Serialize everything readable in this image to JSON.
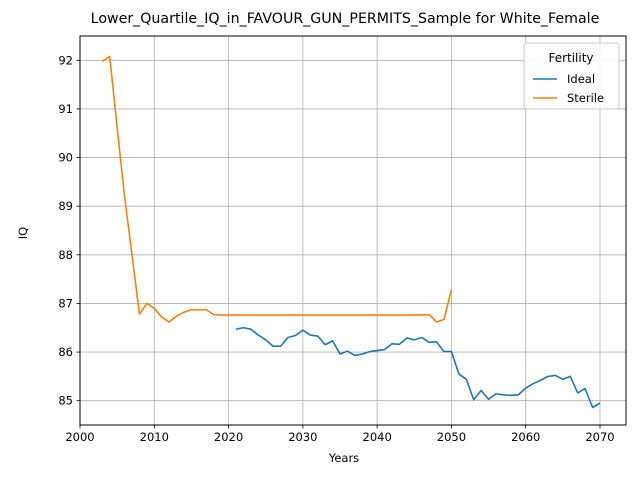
{
  "chart_data": {
    "type": "line",
    "title": "Lower_Quartile_IQ_in_FAVOUR_GUN_PERMITS_Sample for White_Female",
    "xlabel": "Years",
    "ylabel": "IQ",
    "xlim": [
      2000,
      2073.5
    ],
    "ylim": [
      84.5,
      92.5
    ],
    "xticks": [
      2000,
      2010,
      2020,
      2030,
      2040,
      2050,
      2060,
      2070
    ],
    "yticks": [
      85,
      86,
      87,
      88,
      89,
      90,
      91,
      92
    ],
    "grid": true,
    "legend": {
      "title": "Fertility",
      "position": "top-right"
    },
    "series": [
      {
        "name": "Ideal",
        "color": "#1f77b4",
        "points": [
          [
            2021,
            86.47
          ],
          [
            2022,
            86.5
          ],
          [
            2023,
            86.47
          ],
          [
            2024,
            86.35
          ],
          [
            2025,
            86.25
          ],
          [
            2026,
            86.12
          ],
          [
            2027,
            86.12
          ],
          [
            2028,
            86.3
          ],
          [
            2029,
            86.34
          ],
          [
            2030,
            86.45
          ],
          [
            2031,
            86.35
          ],
          [
            2032,
            86.33
          ],
          [
            2033,
            86.15
          ],
          [
            2034,
            86.23
          ],
          [
            2035,
            85.96
          ],
          [
            2036,
            86.02
          ],
          [
            2037,
            85.93
          ],
          [
            2038,
            85.96
          ],
          [
            2039,
            86.01
          ],
          [
            2040,
            86.03
          ],
          [
            2041,
            86.05
          ],
          [
            2042,
            86.17
          ],
          [
            2043,
            86.16
          ],
          [
            2044,
            86.29
          ],
          [
            2045,
            86.25
          ],
          [
            2046,
            86.3
          ],
          [
            2047,
            86.2
          ],
          [
            2048,
            86.21
          ],
          [
            2049,
            86.01
          ],
          [
            2050,
            86.01
          ],
          [
            2051,
            85.55
          ],
          [
            2052,
            85.44
          ],
          [
            2053,
            85.02
          ],
          [
            2054,
            85.21
          ],
          [
            2055,
            85.03
          ],
          [
            2056,
            85.14
          ],
          [
            2057,
            85.12
          ],
          [
            2058,
            85.11
          ],
          [
            2059,
            85.12
          ],
          [
            2060,
            85.26
          ],
          [
            2061,
            85.35
          ],
          [
            2062,
            85.42
          ],
          [
            2063,
            85.5
          ],
          [
            2064,
            85.52
          ],
          [
            2065,
            85.44
          ],
          [
            2066,
            85.5
          ],
          [
            2067,
            85.16
          ],
          [
            2068,
            85.25
          ],
          [
            2069,
            84.86
          ],
          [
            2070,
            84.95
          ]
        ]
      },
      {
        "name": "Sterile",
        "color": "#ff7f0e",
        "points": [
          [
            2003,
            91.98
          ],
          [
            2004,
            92.08
          ],
          [
            2005,
            90.62
          ],
          [
            2006,
            89.2
          ],
          [
            2007,
            88.0
          ],
          [
            2008,
            86.78
          ],
          [
            2009,
            87.0
          ],
          [
            2010,
            86.9
          ],
          [
            2011,
            86.72
          ],
          [
            2012,
            86.62
          ],
          [
            2013,
            86.74
          ],
          [
            2014,
            86.82
          ],
          [
            2015,
            86.87
          ],
          [
            2016,
            86.87
          ],
          [
            2017,
            86.87
          ],
          [
            2018,
            86.77
          ],
          [
            2019,
            86.76
          ],
          [
            2020,
            86.76
          ],
          [
            2025,
            86.76
          ],
          [
            2030,
            86.76
          ],
          [
            2035,
            86.76
          ],
          [
            2040,
            86.76
          ],
          [
            2045,
            86.76
          ],
          [
            2047,
            86.77
          ],
          [
            2048,
            86.62
          ],
          [
            2049,
            86.67
          ],
          [
            2050,
            87.28
          ]
        ]
      }
    ]
  }
}
